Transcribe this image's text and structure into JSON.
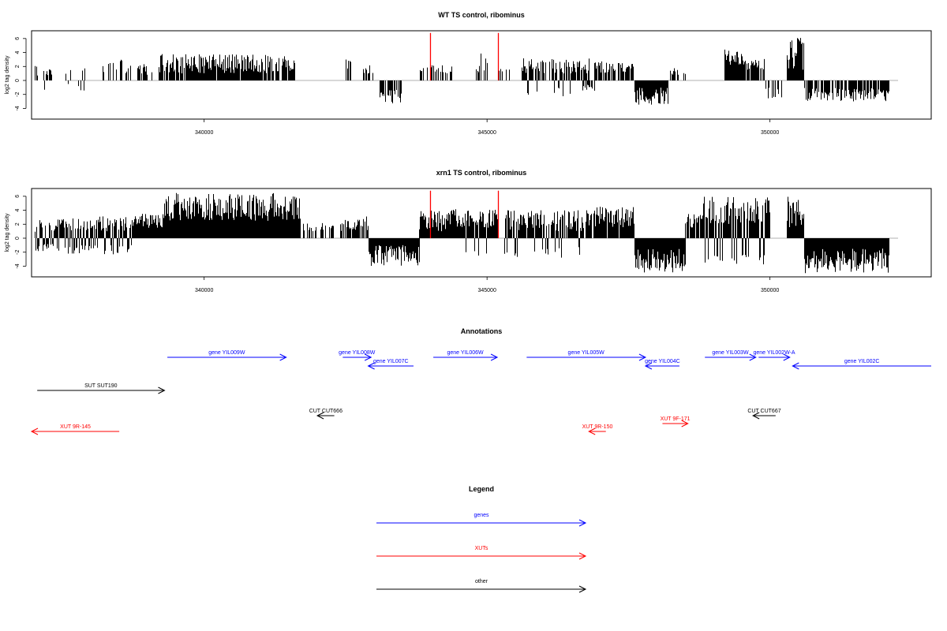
{
  "chart_data": [
    {
      "type": "bar",
      "title": "WT TS control, ribominus",
      "ylabel": "log2 tag density",
      "yticks": [
        "-4",
        "-2",
        "0",
        "2",
        "4",
        "6"
      ],
      "ylim": [
        -5.5,
        7
      ],
      "xlim": [
        336950,
        352850
      ],
      "xticks": [
        {
          "label": "340000",
          "value": 340000
        },
        {
          "label": "345000",
          "value": 345000
        },
        {
          "label": "350000",
          "value": 350000
        }
      ],
      "baseline": 0,
      "segments": [
        {
          "x0": 337000,
          "x1": 337300,
          "dens": 0.45,
          "lo": 0.6,
          "hi": 2.2,
          "ret": 0.3
        },
        {
          "x0": 337500,
          "x1": 337900,
          "dens": 0.35,
          "lo": 0.5,
          "hi": 2.3,
          "ret": 0.4
        },
        {
          "x0": 338200,
          "x1": 338700,
          "dens": 0.35,
          "lo": 1.0,
          "hi": 3.0,
          "ret": 0
        },
        {
          "x0": 338800,
          "x1": 339100,
          "dens": 0.5,
          "lo": 0.8,
          "hi": 2.6,
          "ret": 0
        },
        {
          "x0": 339200,
          "x1": 341600,
          "dens": 0.9,
          "lo": 1.0,
          "hi": 3.8,
          "ret": 0
        },
        {
          "x0": 342500,
          "x1": 342600,
          "dens": 0.6,
          "lo": 1.0,
          "hi": 3.2,
          "ret": 0
        },
        {
          "x0": 342800,
          "x1": 343000,
          "dens": 0.6,
          "lo": 1.0,
          "hi": 2.2,
          "ret": 0
        },
        {
          "x0": 343100,
          "x1": 343500,
          "dens": 0.7,
          "lo": -3.3,
          "hi": -1.2,
          "ret": 0
        },
        {
          "x0": 343800,
          "x1": 344400,
          "dens": 0.35,
          "lo": 1.0,
          "hi": 2.2,
          "ret": 0
        },
        {
          "x0": 344800,
          "x1": 345000,
          "dens": 0.5,
          "lo": 1.0,
          "hi": 4.0,
          "ret": 0
        },
        {
          "x0": 345200,
          "x1": 345400,
          "dens": 0.4,
          "lo": 1.0,
          "hi": 1.8,
          "ret": 0
        },
        {
          "x0": 345600,
          "x1": 346800,
          "dens": 0.8,
          "lo": 1.0,
          "hi": 3.2,
          "ret": 0.08
        },
        {
          "x0": 346700,
          "x1": 346900,
          "dens": 0.4,
          "lo": -1.5,
          "hi": -0.6,
          "ret": 0
        },
        {
          "x0": 346900,
          "x1": 347600,
          "dens": 0.7,
          "lo": 1.0,
          "hi": 2.8,
          "ret": 0
        },
        {
          "x0": 347600,
          "x1": 348200,
          "dens": 1.0,
          "lo": -3.5,
          "hi": -1.0,
          "ret": 0
        },
        {
          "x0": 348200,
          "x1": 348500,
          "dens": 0.4,
          "lo": 0.8,
          "hi": 1.8,
          "ret": 0
        },
        {
          "x0": 349200,
          "x1": 349500,
          "dens": 1.0,
          "lo": 1.5,
          "hi": 4.5,
          "ret": 0
        },
        {
          "x0": 349500,
          "x1": 349900,
          "dens": 0.8,
          "lo": 1.5,
          "hi": 3.5,
          "ret": 0
        },
        {
          "x0": 349900,
          "x1": 350200,
          "dens": 0.4,
          "lo": -2.6,
          "hi": -1.0,
          "ret": 0
        },
        {
          "x0": 350300,
          "x1": 350600,
          "dens": 1.0,
          "lo": 1.5,
          "hi": 6.2,
          "ret": 0
        },
        {
          "x0": 350600,
          "x1": 352100,
          "dens": 0.7,
          "lo": -3.0,
          "hi": -1.0,
          "ret": 0
        }
      ],
      "markers": [
        344000,
        345200
      ],
      "marker_top": 6.8
    },
    {
      "type": "bar",
      "title": "xrn1 TS control, ribominus",
      "ylabel": "log2 tag density",
      "yticks": [
        "-4",
        "-2",
        "0",
        "2",
        "4",
        "6"
      ],
      "ylim": [
        -5.5,
        7
      ],
      "xlim": [
        336950,
        352850
      ],
      "xticks": [
        {
          "label": "340000",
          "value": 340000
        },
        {
          "label": "345000",
          "value": 345000
        },
        {
          "label": "350000",
          "value": 350000
        }
      ],
      "baseline": 0,
      "segments": [
        {
          "x0": 337000,
          "x1": 337400,
          "dens": 1.0,
          "lo": 0.8,
          "hi": 2.6,
          "ret": 0.4
        },
        {
          "x0": 337400,
          "x1": 338000,
          "dens": 1.0,
          "lo": 1.0,
          "hi": 3.0,
          "ret": 0.35
        },
        {
          "x0": 338000,
          "x1": 338800,
          "dens": 1.0,
          "lo": 1.0,
          "hi": 3.2,
          "ret": 0.25
        },
        {
          "x0": 338800,
          "x1": 339300,
          "dens": 1.0,
          "lo": 1.5,
          "hi": 3.5,
          "ret": 0
        },
        {
          "x0": 339300,
          "x1": 341700,
          "dens": 1.0,
          "lo": 2.5,
          "hi": 6.5,
          "ret": 0
        },
        {
          "x0": 341700,
          "x1": 342300,
          "dens": 0.35,
          "lo": 1.0,
          "hi": 2.2,
          "ret": 0
        },
        {
          "x0": 342400,
          "x1": 342900,
          "dens": 0.8,
          "lo": 1.0,
          "hi": 3.2,
          "ret": 0
        },
        {
          "x0": 342900,
          "x1": 343800,
          "dens": 1.0,
          "lo": -4.0,
          "hi": -1.0,
          "ret": 0
        },
        {
          "x0": 343800,
          "x1": 344300,
          "dens": 1.0,
          "lo": 1.0,
          "hi": 4.0,
          "ret": 0
        },
        {
          "x0": 344300,
          "x1": 345200,
          "dens": 1.0,
          "lo": 1.5,
          "hi": 4.2,
          "ret": 0.1
        },
        {
          "x0": 345300,
          "x1": 346900,
          "dens": 0.9,
          "lo": 1.0,
          "hi": 4.0,
          "ret": 0.15
        },
        {
          "x0": 346900,
          "x1": 347600,
          "dens": 0.9,
          "lo": 1.5,
          "hi": 4.5,
          "ret": 0
        },
        {
          "x0": 347600,
          "x1": 348500,
          "dens": 1.0,
          "lo": -5.0,
          "hi": -1.5,
          "ret": 0
        },
        {
          "x0": 348500,
          "x1": 348800,
          "dens": 0.8,
          "lo": 1.5,
          "hi": 3.5,
          "ret": 0
        },
        {
          "x0": 348800,
          "x1": 350000,
          "dens": 1.0,
          "lo": 2.0,
          "hi": 6.0,
          "ret": 0.2
        },
        {
          "x0": 350300,
          "x1": 350600,
          "dens": 1.0,
          "lo": 1.5,
          "hi": 6.0,
          "ret": 0
        },
        {
          "x0": 350600,
          "x1": 352100,
          "dens": 1.0,
          "lo": -5.0,
          "hi": -1.5,
          "ret": 0
        }
      ],
      "markers": [
        344000,
        345200
      ],
      "marker_top": 6.8
    }
  ],
  "annotations": {
    "title": "Annotations",
    "features": [
      {
        "label": "gene YIL009W",
        "x0": 339350,
        "x1": 341450,
        "row": "r1",
        "dir": "right",
        "color": "#0000ff"
      },
      {
        "label": "gene YIL008W",
        "x0": 342450,
        "x1": 342950,
        "row": "r1",
        "dir": "right",
        "color": "#0000ff"
      },
      {
        "label": "gene YIL007C",
        "x0": 342900,
        "x1": 343700,
        "row": "r2",
        "dir": "left",
        "color": "#0000ff"
      },
      {
        "label": "gene YIL006W",
        "x0": 344050,
        "x1": 345180,
        "row": "r1",
        "dir": "right",
        "color": "#0000ff"
      },
      {
        "label": "gene YIL005W",
        "x0": 345700,
        "x1": 347800,
        "row": "r1",
        "dir": "right",
        "color": "#0000ff"
      },
      {
        "label": "gene YIL004C",
        "x0": 347800,
        "x1": 348400,
        "row": "r2",
        "dir": "left",
        "color": "#0000ff"
      },
      {
        "label": "gene YIL003W",
        "x0": 348850,
        "x1": 349750,
        "row": "r1",
        "dir": "right",
        "color": "#0000ff"
      },
      {
        "label": "gene YIL002W-A",
        "x0": 349800,
        "x1": 350350,
        "row": "r1",
        "dir": "right",
        "color": "#0000ff"
      },
      {
        "label": "gene YIL002C",
        "x0": 350400,
        "x1": 352850,
        "row": "r2",
        "dir": "left",
        "color": "#0000ff"
      },
      {
        "label": "SUT SUT190",
        "x0": 337050,
        "x1": 339300,
        "row": "r3",
        "dir": "right",
        "color": "#000000"
      },
      {
        "label": "CUT CUT666",
        "x0": 342000,
        "x1": 342300,
        "row": "r4",
        "dir": "left",
        "color": "#000000"
      },
      {
        "label": "CUT CUT667",
        "x0": 349700,
        "x1": 350100,
        "row": "r4",
        "dir": "left",
        "color": "#000000"
      },
      {
        "label": "XUT 9R-145",
        "x0": 336950,
        "x1": 338500,
        "row": "r6",
        "dir": "left",
        "color": "#ff0000"
      },
      {
        "label": "XUT 9R-150",
        "x0": 346800,
        "x1": 347100,
        "row": "r6",
        "dir": "left",
        "color": "#ff0000"
      },
      {
        "label": "XUT 9F-171",
        "x0": 348100,
        "x1": 348550,
        "row": "r5",
        "dir": "right",
        "color": "#ff0000"
      }
    ]
  },
  "legend": {
    "title": "Legend",
    "items": [
      {
        "label": "genes",
        "color": "#0000ff"
      },
      {
        "label": "XUTs",
        "color": "#ff0000"
      },
      {
        "label": "other",
        "color": "#000000"
      }
    ]
  }
}
